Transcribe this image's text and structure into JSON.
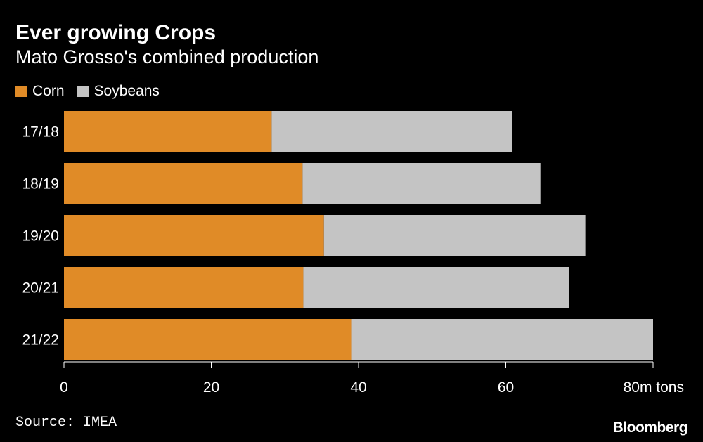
{
  "chart_data": {
    "type": "bar",
    "orientation": "horizontal",
    "stacked": true,
    "title": "Ever growing Crops",
    "subtitle": "Mato Grosso's combined production",
    "categories": [
      "17/18",
      "18/19",
      "19/20",
      "20/21",
      "21/22"
    ],
    "series": [
      {
        "name": "Corn",
        "color": "#e08b27",
        "values": [
          28.2,
          32.4,
          35.3,
          32.5,
          39.0
        ]
      },
      {
        "name": "Soybeans",
        "color": "#c4c4c4",
        "values": [
          32.7,
          32.3,
          35.5,
          36.1,
          41.0
        ]
      }
    ],
    "xlim": [
      0,
      80
    ],
    "xticks": [
      0,
      20,
      40,
      60,
      80
    ],
    "xtick_labels": [
      "0",
      "20",
      "40",
      "60",
      "80m tons"
    ],
    "legend": "top-left"
  },
  "source": "Source: IMEA",
  "brand": "Bloomberg"
}
